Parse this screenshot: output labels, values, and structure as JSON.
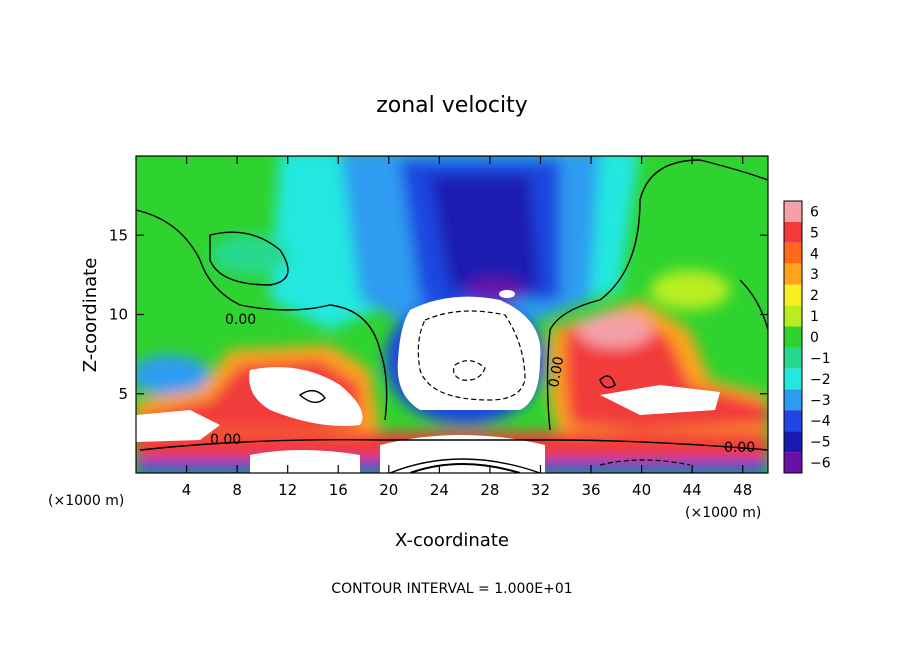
{
  "chart_data": {
    "type": "heatmap",
    "title": "zonal velocity",
    "xlabel": "X-coordinate",
    "ylabel": "Z-coordinate",
    "x_unit": "(×1000 m)",
    "y_unit": "(×1000 m)",
    "xlim": [
      0,
      50
    ],
    "ylim": [
      0,
      20
    ],
    "x_ticks": [
      4,
      8,
      12,
      16,
      20,
      24,
      28,
      32,
      36,
      40,
      44,
      48
    ],
    "y_ticks": [
      5,
      10,
      15
    ],
    "colorbar": {
      "levels": [
        6,
        5,
        4,
        3,
        2,
        1,
        0,
        -1,
        -2,
        -3,
        -4,
        -5,
        -6
      ],
      "colors": [
        "#f4a0a8",
        "#f23a3a",
        "#ff6a1a",
        "#ffa31a",
        "#f8ee20",
        "#b8ee20",
        "#2fd32f",
        "#26d98e",
        "#22e8e0",
        "#2d9cf0",
        "#1f46e0",
        "#1a1ab0",
        "#6a0fa8"
      ]
    },
    "contour_labels": [
      "0.00",
      "0.00",
      "0.00",
      "0.00"
    ],
    "footer": "CONTOUR INTERVAL = 1.000E+01",
    "grid": false
  }
}
